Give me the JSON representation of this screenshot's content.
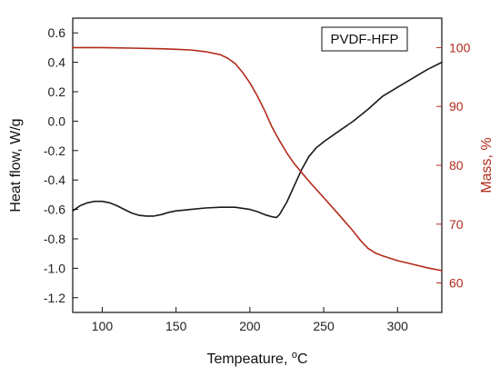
{
  "chart_data": {
    "type": "line",
    "legend_box_text": "PVDF-HFP",
    "legend_position": "top-right",
    "grid": false,
    "xlabel": "Tempeature, ",
    "xlabel_unit_super": "o",
    "xlabel_unit": "C",
    "ylabel_left": "Heat flow, W/g",
    "ylabel_right": "Mass, %",
    "xlim": [
      80,
      330
    ],
    "ylim_left": [
      -1.3,
      0.7
    ],
    "ylim_right": [
      55,
      105
    ],
    "x_ticks": [
      100,
      150,
      200,
      250,
      300
    ],
    "y_left_ticks": [
      "-1.2",
      "-1.0",
      "-0.8",
      "-0.6",
      "-0.4",
      "-0.2",
      "0.0",
      "0.2",
      "0.4",
      "0.6"
    ],
    "y_right_ticks": [
      60,
      70,
      80,
      90,
      100
    ],
    "colors": {
      "heat_flow": "#1a1a1a",
      "mass": "#b22a1a"
    },
    "series": [
      {
        "axis": "left",
        "color": "#1a1a1a",
        "x": [
          80,
          85,
          90,
          95,
          100,
          105,
          110,
          115,
          120,
          125,
          130,
          135,
          140,
          145,
          150,
          155,
          160,
          170,
          180,
          190,
          200,
          205,
          210,
          215,
          218,
          220,
          225,
          230,
          235,
          240,
          245,
          250,
          260,
          270,
          280,
          290,
          300,
          310,
          320,
          330
        ],
        "y": [
          -0.61,
          -0.575,
          -0.555,
          -0.545,
          -0.545,
          -0.555,
          -0.575,
          -0.6,
          -0.625,
          -0.64,
          -0.645,
          -0.645,
          -0.635,
          -0.62,
          -0.61,
          -0.605,
          -0.6,
          -0.59,
          -0.585,
          -0.585,
          -0.6,
          -0.615,
          -0.635,
          -0.65,
          -0.655,
          -0.635,
          -0.55,
          -0.44,
          -0.33,
          -0.24,
          -0.18,
          -0.14,
          -0.07,
          0.0,
          0.08,
          0.17,
          0.23,
          0.29,
          0.35,
          0.4
        ]
      },
      {
        "axis": "right",
        "color": "#b22a1a",
        "x": [
          80,
          100,
          120,
          140,
          150,
          160,
          170,
          180,
          185,
          190,
          195,
          200,
          205,
          210,
          215,
          220,
          225,
          230,
          235,
          240,
          250,
          260,
          270,
          275,
          280,
          285,
          290,
          300,
          310,
          320,
          330
        ],
        "y": [
          100,
          100,
          99.9,
          99.8,
          99.7,
          99.6,
          99.3,
          98.8,
          98.2,
          97.3,
          95.8,
          94.0,
          91.8,
          89.3,
          86.5,
          84.2,
          82.1,
          80.3,
          78.8,
          77.3,
          74.5,
          71.7,
          68.8,
          67.2,
          65.9,
          65.1,
          64.6,
          63.8,
          63.2,
          62.6,
          62.1
        ]
      }
    ]
  }
}
